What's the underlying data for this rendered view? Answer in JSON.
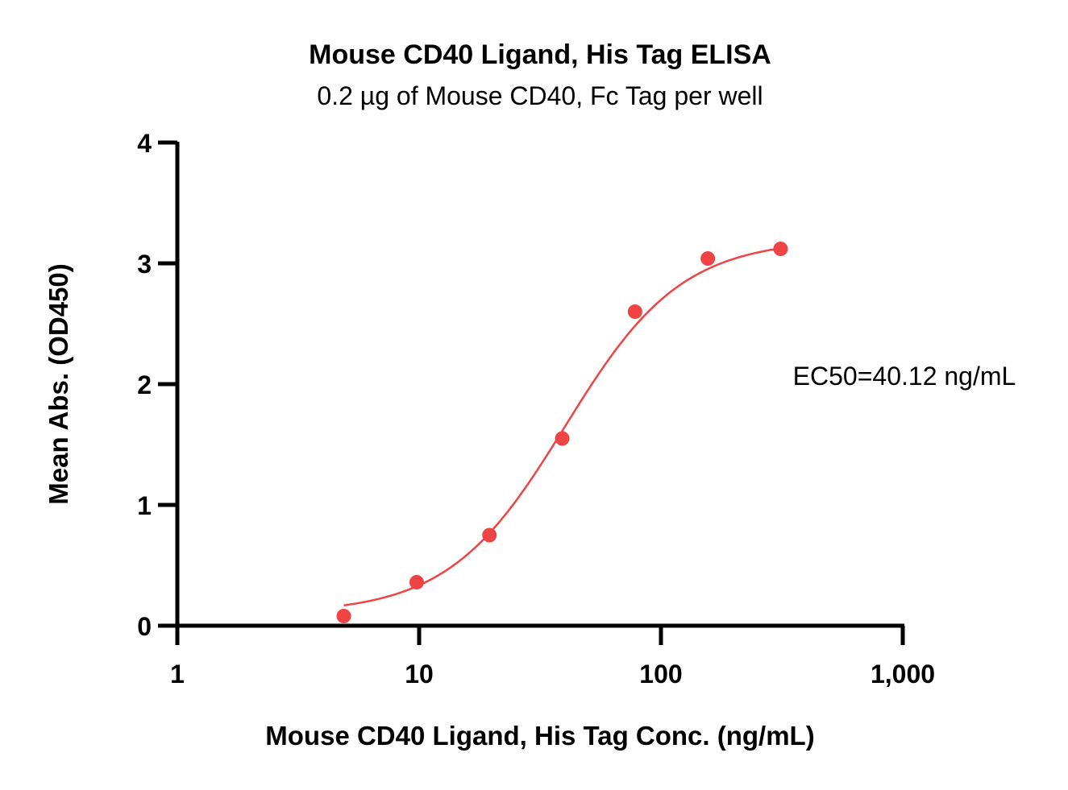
{
  "chart_data": {
    "type": "scatter",
    "title": "Mouse CD40 Ligand, His Tag ELISA",
    "subtitle": "0.2 µg of Mouse CD40, Fc Tag per well",
    "xlabel": "Mouse CD40 Ligand, His Tag Conc. (ng/mL)",
    "ylabel": "Mean Abs. (OD450)",
    "x_scale": "log",
    "xlim": [
      1,
      1000
    ],
    "ylim": [
      0,
      4
    ],
    "x_ticks": [
      1,
      10,
      100,
      1000
    ],
    "x_tick_labels": [
      "1",
      "10",
      "100",
      "1,000"
    ],
    "y_ticks": [
      0,
      1,
      2,
      3,
      4
    ],
    "y_tick_labels": [
      "0",
      "1",
      "2",
      "3",
      "4"
    ],
    "grid": false,
    "color": "#ef4444",
    "series": [
      {
        "x": [
          4.88,
          9.77,
          19.53,
          39.06,
          78.13,
          156.25,
          312.5
        ],
        "y": [
          0.08,
          0.36,
          0.75,
          1.55,
          2.6,
          3.04,
          3.12
        ]
      }
    ],
    "fit": {
      "model": "4PL",
      "bottom": 0.1,
      "top": 3.2,
      "ec50": 40.12,
      "hill": 1.8
    },
    "annotations": [
      {
        "text": "EC50=40.12 ng/mL"
      }
    ]
  }
}
